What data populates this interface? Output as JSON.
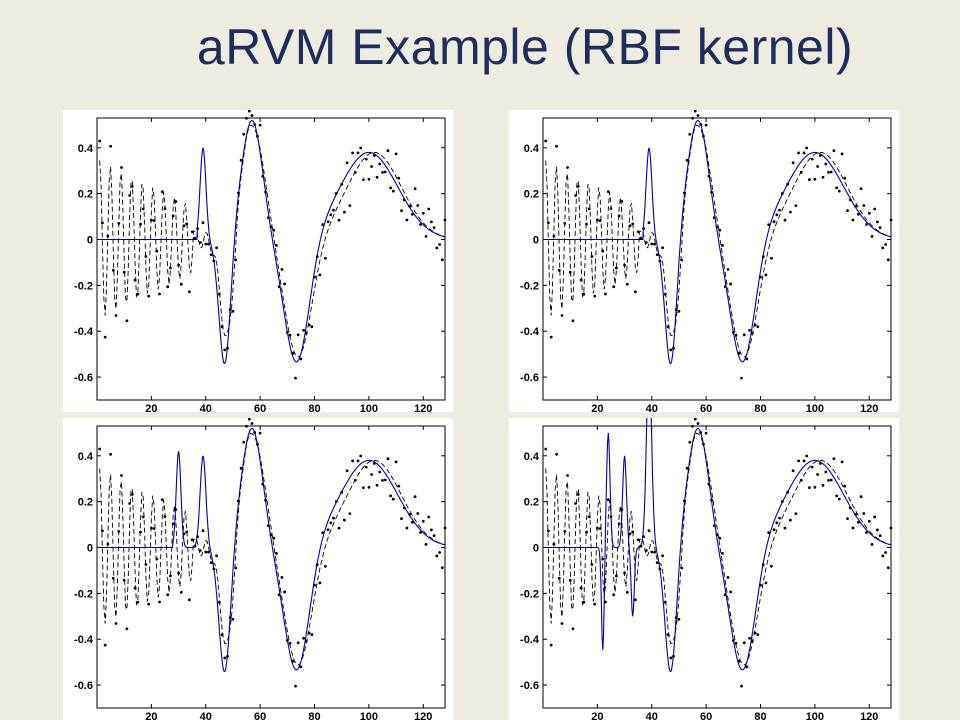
{
  "slide": {
    "title": "aRVM Example (RBF kernel)"
  },
  "chart_data": [
    {
      "type": "line",
      "panel": "top-left",
      "xlim": [
        0,
        128
      ],
      "ylim": [
        -0.7,
        0.53
      ],
      "xticks": [
        20,
        40,
        60,
        80,
        100,
        120
      ],
      "yticks": [
        0.4,
        0.2,
        0,
        -0.2,
        -0.4,
        -0.6
      ],
      "ytick_labels": [
        "0.4",
        "0.2",
        "0",
        "-0.2",
        "-0.4",
        "-0.6"
      ],
      "series": [
        {
          "style": "dashed",
          "color": "#000000",
          "function": "true signal with oscillating low-frequency region"
        },
        {
          "style": "solid",
          "color": "#0000aa",
          "function": "aRVM fit",
          "active_from_x": 37
        },
        {
          "style": "points",
          "color": "#000000",
          "function": "noisy samples"
        }
      ]
    },
    {
      "type": "line",
      "panel": "top-right",
      "xlim": [
        0,
        128
      ],
      "ylim": [
        -0.7,
        0.53
      ],
      "xticks": [
        20,
        40,
        60,
        80,
        100,
        120
      ],
      "yticks": [
        0.4,
        0.2,
        0,
        -0.2,
        -0.4,
        -0.6
      ],
      "ytick_labels": [
        "0.4",
        "0.2",
        "0",
        "-0.2",
        "-0.4",
        "-0.6"
      ],
      "series": [
        {
          "style": "dashed",
          "color": "#000000"
        },
        {
          "style": "solid",
          "color": "#0000aa",
          "active_from_x": 37
        },
        {
          "style": "points",
          "color": "#000000"
        }
      ]
    },
    {
      "type": "line",
      "panel": "bottom-left",
      "xlim": [
        0,
        128
      ],
      "ylim": [
        -0.7,
        0.53
      ],
      "xticks": [
        20,
        40,
        60,
        80,
        100,
        120
      ],
      "yticks": [
        0.4,
        0.2,
        0,
        -0.2,
        -0.4,
        -0.6
      ],
      "ytick_labels": [
        "0.4",
        "0.2",
        "0",
        "-0.2",
        "-0.4",
        "-0.6"
      ],
      "series": [
        {
          "style": "dashed",
          "color": "#000000"
        },
        {
          "style": "solid",
          "color": "#0000aa",
          "active_from_x": 28
        },
        {
          "style": "points",
          "color": "#000000"
        }
      ]
    },
    {
      "type": "line",
      "panel": "bottom-right",
      "xlim": [
        0,
        128
      ],
      "ylim": [
        -0.7,
        0.53
      ],
      "xticks": [
        20,
        40,
        60,
        80,
        100,
        120
      ],
      "yticks": [
        0.4,
        0.2,
        0,
        -0.2,
        -0.4,
        -0.6
      ],
      "ytick_labels": [
        "0.4",
        "0.2",
        "0",
        "-0.2",
        "-0.4",
        "-0.6"
      ],
      "series": [
        {
          "style": "dashed",
          "color": "#000000"
        },
        {
          "style": "solid",
          "color": "#0000aa",
          "active_from_x": 20
        },
        {
          "style": "points",
          "color": "#000000"
        }
      ]
    }
  ]
}
